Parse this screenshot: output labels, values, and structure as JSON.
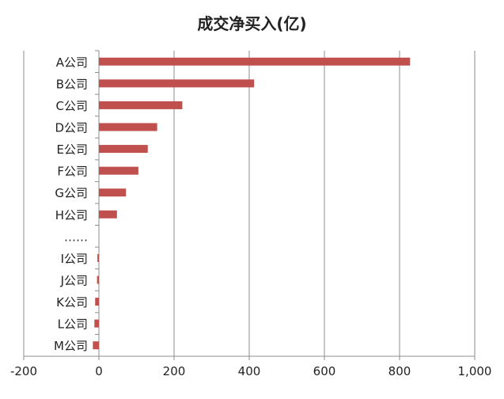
{
  "chart_data": {
    "type": "bar",
    "orientation": "horizontal",
    "title": "成交净买入(亿)",
    "xlabel": "",
    "ylabel": "",
    "categories": [
      "A公司",
      "B公司",
      "C公司",
      "D公司",
      "E公司",
      "F公司",
      "G公司",
      "H公司",
      "……",
      "I公司",
      "J公司",
      "K公司",
      "L公司",
      "M公司"
    ],
    "values": [
      828,
      413,
      222,
      155,
      130,
      105,
      72,
      48,
      null,
      -4,
      -5,
      -10,
      -12,
      -16
    ],
    "xlim": [
      -200,
      1000
    ],
    "x_ticks": [
      -200,
      0,
      200,
      400,
      600,
      800,
      1000
    ],
    "x_tick_labels": [
      "-200",
      "0",
      "200",
      "400",
      "600",
      "800",
      "1,000"
    ],
    "grid": "vertical",
    "legend": "none",
    "bar_color": "#c0504d"
  }
}
